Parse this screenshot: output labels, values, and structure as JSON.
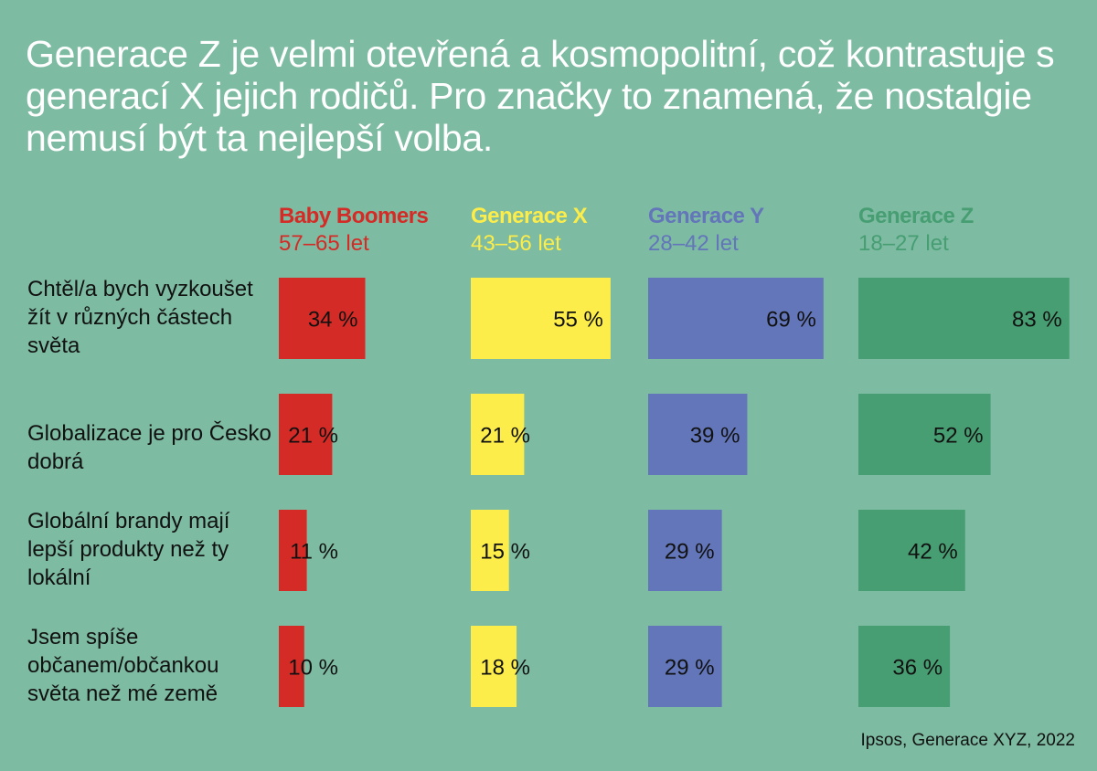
{
  "title": "Generace Z je velmi otevřená a kosmopolitní, což kontrastuje s generací X jejich rodičů. Pro značky to znamená, že nostalgie nemusí být ta nejlepší volba.",
  "source": "Ipsos, Generace XYZ, 2022",
  "chart_data": {
    "type": "bar",
    "orientation": "horizontal",
    "title": "Generace Z je velmi otevřená a kosmopolitní, což kontrastuje s generací X jejich rodičů. Pro značky to znamená, že nostalgie nemusí být ta nejlepší volba.",
    "categories": [
      "Chtěl/a bych vyzkoušet žít v různých částech světa",
      "Globalizace je pro Česko dobrá",
      "Globální brandy mají lepší produkty než ty lokální",
      "Jsem spíše občanem/občankou světa než mé země"
    ],
    "unit": "%",
    "series": [
      {
        "name": "Baby Boomers",
        "age": "57–65 let",
        "color": "#d42b26",
        "values": [
          34,
          21,
          11,
          10
        ],
        "labels": [
          "34 %",
          "21 %",
          "11 %",
          "10 %"
        ]
      },
      {
        "name": "Generace X",
        "age": "43–56 let",
        "color": "#fced4a",
        "values": [
          55,
          21,
          15,
          18
        ],
        "labels": [
          "55 %",
          "21 %",
          "15 %",
          "18 %"
        ]
      },
      {
        "name": "Generace Y",
        "age": "28–42 let",
        "color": "#6276b9",
        "values": [
          69,
          39,
          29,
          29
        ],
        "labels": [
          "69 %",
          "39 %",
          "29 %",
          "29 %"
        ]
      },
      {
        "name": "Generace Z",
        "age": "18–27 let",
        "color": "#479e72",
        "values": [
          83,
          52,
          42,
          36
        ],
        "labels": [
          "83 %",
          "52 %",
          "42 %",
          "36 %"
        ]
      }
    ],
    "xlabel": "",
    "ylabel": "",
    "grid": false,
    "legend": "top"
  }
}
